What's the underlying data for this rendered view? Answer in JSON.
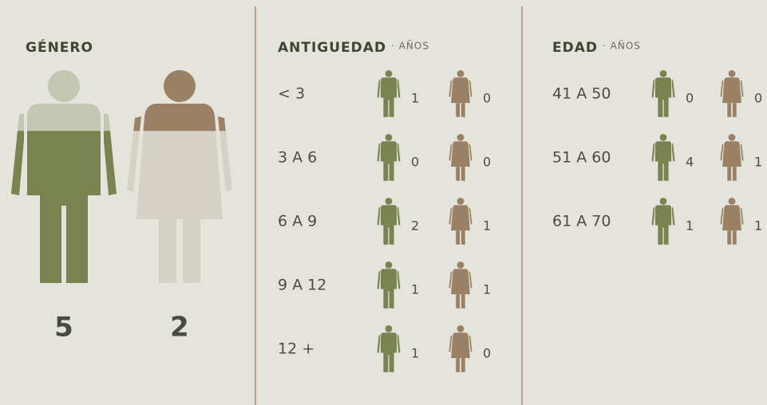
{
  "genero": {
    "title": "GÉNERO",
    "male": 5,
    "female": 2
  },
  "antiguedad": {
    "title": "ANTIGUEDAD",
    "unit": "· AÑOS",
    "rows": [
      {
        "label": "< 3",
        "male": 1,
        "female": 0
      },
      {
        "label": "3 A 6",
        "male": 0,
        "female": 0
      },
      {
        "label": "6 A 9",
        "male": 2,
        "female": 1
      },
      {
        "label": "9 A 12",
        "male": 1,
        "female": 1
      },
      {
        "label": "12 +",
        "male": 1,
        "female": 0
      }
    ]
  },
  "edad": {
    "title": "EDAD",
    "unit": "· AÑOS",
    "rows": [
      {
        "label": "41 A 50",
        "male": 0,
        "female": 0
      },
      {
        "label": "51 A 60",
        "male": 4,
        "female": 1
      },
      {
        "label": "61 A 70",
        "male": 1,
        "female": 1
      }
    ]
  }
}
